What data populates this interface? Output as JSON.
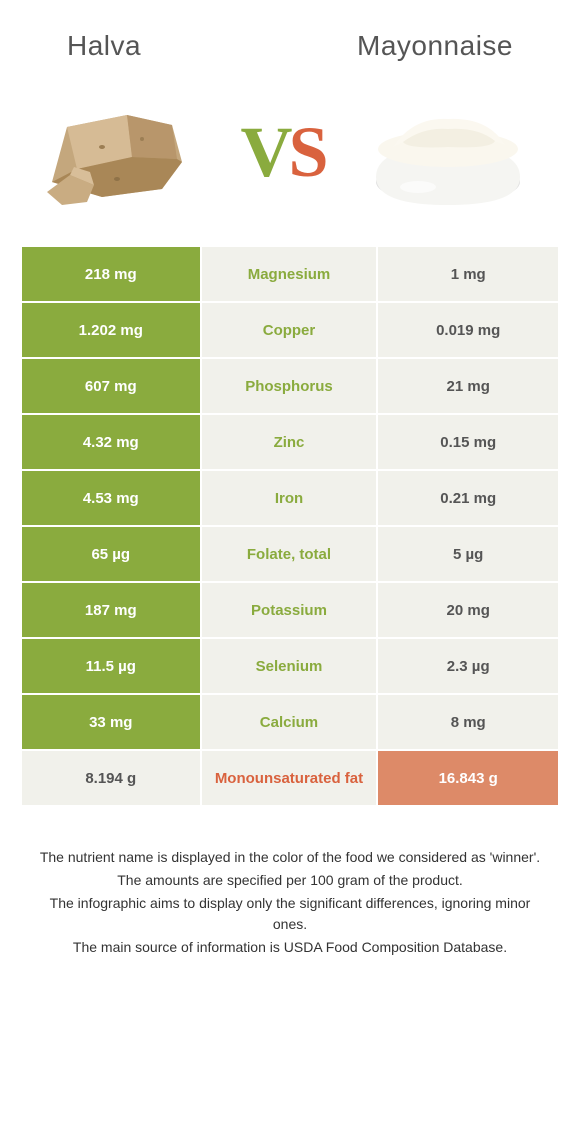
{
  "header": {
    "left_title": "Halva",
    "right_title": "Mayonnaise",
    "vs_v": "V",
    "vs_s": "S"
  },
  "colors": {
    "green": "#8aab3e",
    "orange": "#d9623e",
    "orange_bg": "#dd8a68",
    "light_bg": "#f1f1eb",
    "white": "#ffffff",
    "text_mid": "#555555",
    "foot_text": "#333333"
  },
  "table": {
    "rows": [
      {
        "left": "218 mg",
        "mid": "Magnesium",
        "right": "1 mg",
        "winner": "left"
      },
      {
        "left": "1.202 mg",
        "mid": "Copper",
        "right": "0.019 mg",
        "winner": "left"
      },
      {
        "left": "607 mg",
        "mid": "Phosphorus",
        "right": "21 mg",
        "winner": "left"
      },
      {
        "left": "4.32 mg",
        "mid": "Zinc",
        "right": "0.15 mg",
        "winner": "left"
      },
      {
        "left": "4.53 mg",
        "mid": "Iron",
        "right": "0.21 mg",
        "winner": "left"
      },
      {
        "left": "65 µg",
        "mid": "Folate, total",
        "right": "5 µg",
        "winner": "left"
      },
      {
        "left": "187 mg",
        "mid": "Potassium",
        "right": "20 mg",
        "winner": "left"
      },
      {
        "left": "11.5 µg",
        "mid": "Selenium",
        "right": "2.3 µg",
        "winner": "left"
      },
      {
        "left": "33 mg",
        "mid": "Calcium",
        "right": "8 mg",
        "winner": "left"
      },
      {
        "left": "8.194 g",
        "mid": "Monounsaturated fat",
        "right": "16.843 g",
        "winner": "right"
      }
    ]
  },
  "footnotes": [
    "The nutrient name is displayed in the color of the food we considered as 'winner'.",
    "The amounts are specified per 100 gram of the product.",
    "The infographic aims to display only the significant differences, ignoring minor ones.",
    "The main source of information is USDA Food Composition Database."
  ]
}
